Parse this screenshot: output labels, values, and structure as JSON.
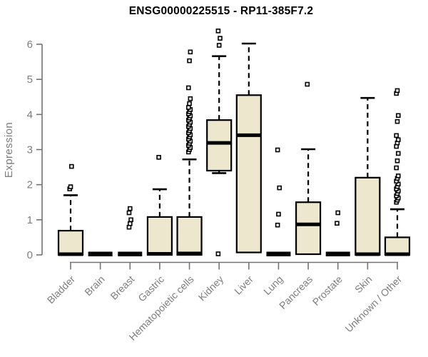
{
  "chart_data": {
    "type": "boxplot",
    "title": "ENSG00000225515 - RP11-385F7.2",
    "xlabel": "",
    "ylabel": "Expression",
    "ylim": [
      0,
      6.45
    ],
    "yticks": [
      0,
      1,
      2,
      3,
      4,
      5,
      6
    ],
    "grid": false,
    "legend": "none",
    "colors": {
      "box_fill": "#EDE8CD",
      "box_border": "#000000",
      "median": "#000000",
      "whisker": "#000000",
      "outlier": "#000000",
      "axis": "#737373",
      "tick_label": "#7d7d7d",
      "title": "#000000",
      "background": "#ffffff"
    },
    "categories": [
      "Bladder",
      "Brain",
      "Breast",
      "Gastric",
      "Hematopoietic cells",
      "Kidney",
      "Liver",
      "Lung",
      "Pancreas",
      "Prostate",
      "Skin",
      "Unknown / Other"
    ],
    "boxes": [
      {
        "label": "Bladder",
        "collapsed": false,
        "q1": 0,
        "median": 0.02,
        "q3": 0.69,
        "whisker_low": 0,
        "whisker_high": 1.7,
        "outliers": [
          1.88,
          1.94,
          2.52
        ]
      },
      {
        "label": "Brain",
        "collapsed": true,
        "q1": 0,
        "median": 0,
        "q3": 0,
        "whisker_low": 0,
        "whisker_high": 0,
        "outliers": []
      },
      {
        "label": "Breast",
        "collapsed": true,
        "q1": 0,
        "median": 0,
        "q3": 0,
        "whisker_low": 0,
        "whisker_high": 0,
        "outliers": [
          0.79,
          0.89,
          1.0,
          1.2,
          1.32
        ]
      },
      {
        "label": "Gastric",
        "collapsed": false,
        "q1": 0,
        "median": 0.03,
        "q3": 1.08,
        "whisker_low": 0,
        "whisker_high": 1.87,
        "outliers": [
          2.78
        ]
      },
      {
        "label": "Hematopoietic cells",
        "collapsed": false,
        "q1": 0,
        "median": 0.04,
        "q3": 1.08,
        "whisker_low": 0,
        "whisker_high": 2.72,
        "outliers": [
          2.93,
          3.0,
          3.06,
          3.12,
          3.18,
          3.24,
          3.3,
          3.36,
          3.42,
          3.48,
          3.54,
          3.6,
          3.66,
          3.72,
          3.78,
          3.84,
          3.9,
          3.96,
          4.02,
          4.08,
          4.14,
          4.2,
          4.31,
          4.45,
          4.76,
          5.53,
          5.78
        ]
      },
      {
        "label": "Kidney",
        "collapsed": false,
        "q1": 2.4,
        "median": 3.19,
        "q3": 3.84,
        "whisker_low": 2.33,
        "whisker_high": 5.66,
        "outliers": [
          0.03,
          5.97,
          6.17,
          6.38
        ]
      },
      {
        "label": "Liver",
        "collapsed": false,
        "q1": 0.07,
        "median": 3.41,
        "q3": 4.55,
        "whisker_low": 0.07,
        "whisker_high": 6.02,
        "outliers": []
      },
      {
        "label": "Lung",
        "collapsed": true,
        "q1": 0,
        "median": 0,
        "q3": 0,
        "whisker_low": 0,
        "whisker_high": 0,
        "outliers": [
          0.85,
          1.16,
          1.91,
          2.99
        ]
      },
      {
        "label": "Pancreas",
        "collapsed": false,
        "q1": 0.02,
        "median": 0.87,
        "q3": 1.5,
        "whisker_low": 0.02,
        "whisker_high": 3.01,
        "outliers": [
          4.86
        ]
      },
      {
        "label": "Prostate",
        "collapsed": true,
        "q1": 0,
        "median": 0,
        "q3": 0,
        "whisker_low": 0,
        "whisker_high": 0,
        "outliers": [
          0.9,
          1.2
        ]
      },
      {
        "label": "Skin",
        "collapsed": false,
        "q1": 0,
        "median": 0.02,
        "q3": 2.2,
        "whisker_low": 0,
        "whisker_high": 4.47,
        "outliers": []
      },
      {
        "label": "Unknown / Other",
        "collapsed": false,
        "q1": 0,
        "median": 0.02,
        "q3": 0.5,
        "whisker_low": 0,
        "whisker_high": 1.3,
        "outliers": [
          1.5,
          1.56,
          1.62,
          1.68,
          1.75,
          1.82,
          1.88,
          1.95,
          2.02,
          2.1,
          2.18,
          2.25,
          2.48,
          2.68,
          2.89,
          3.09,
          3.19,
          3.28,
          3.4,
          3.8,
          3.97,
          4.6,
          4.68
        ]
      }
    ]
  }
}
